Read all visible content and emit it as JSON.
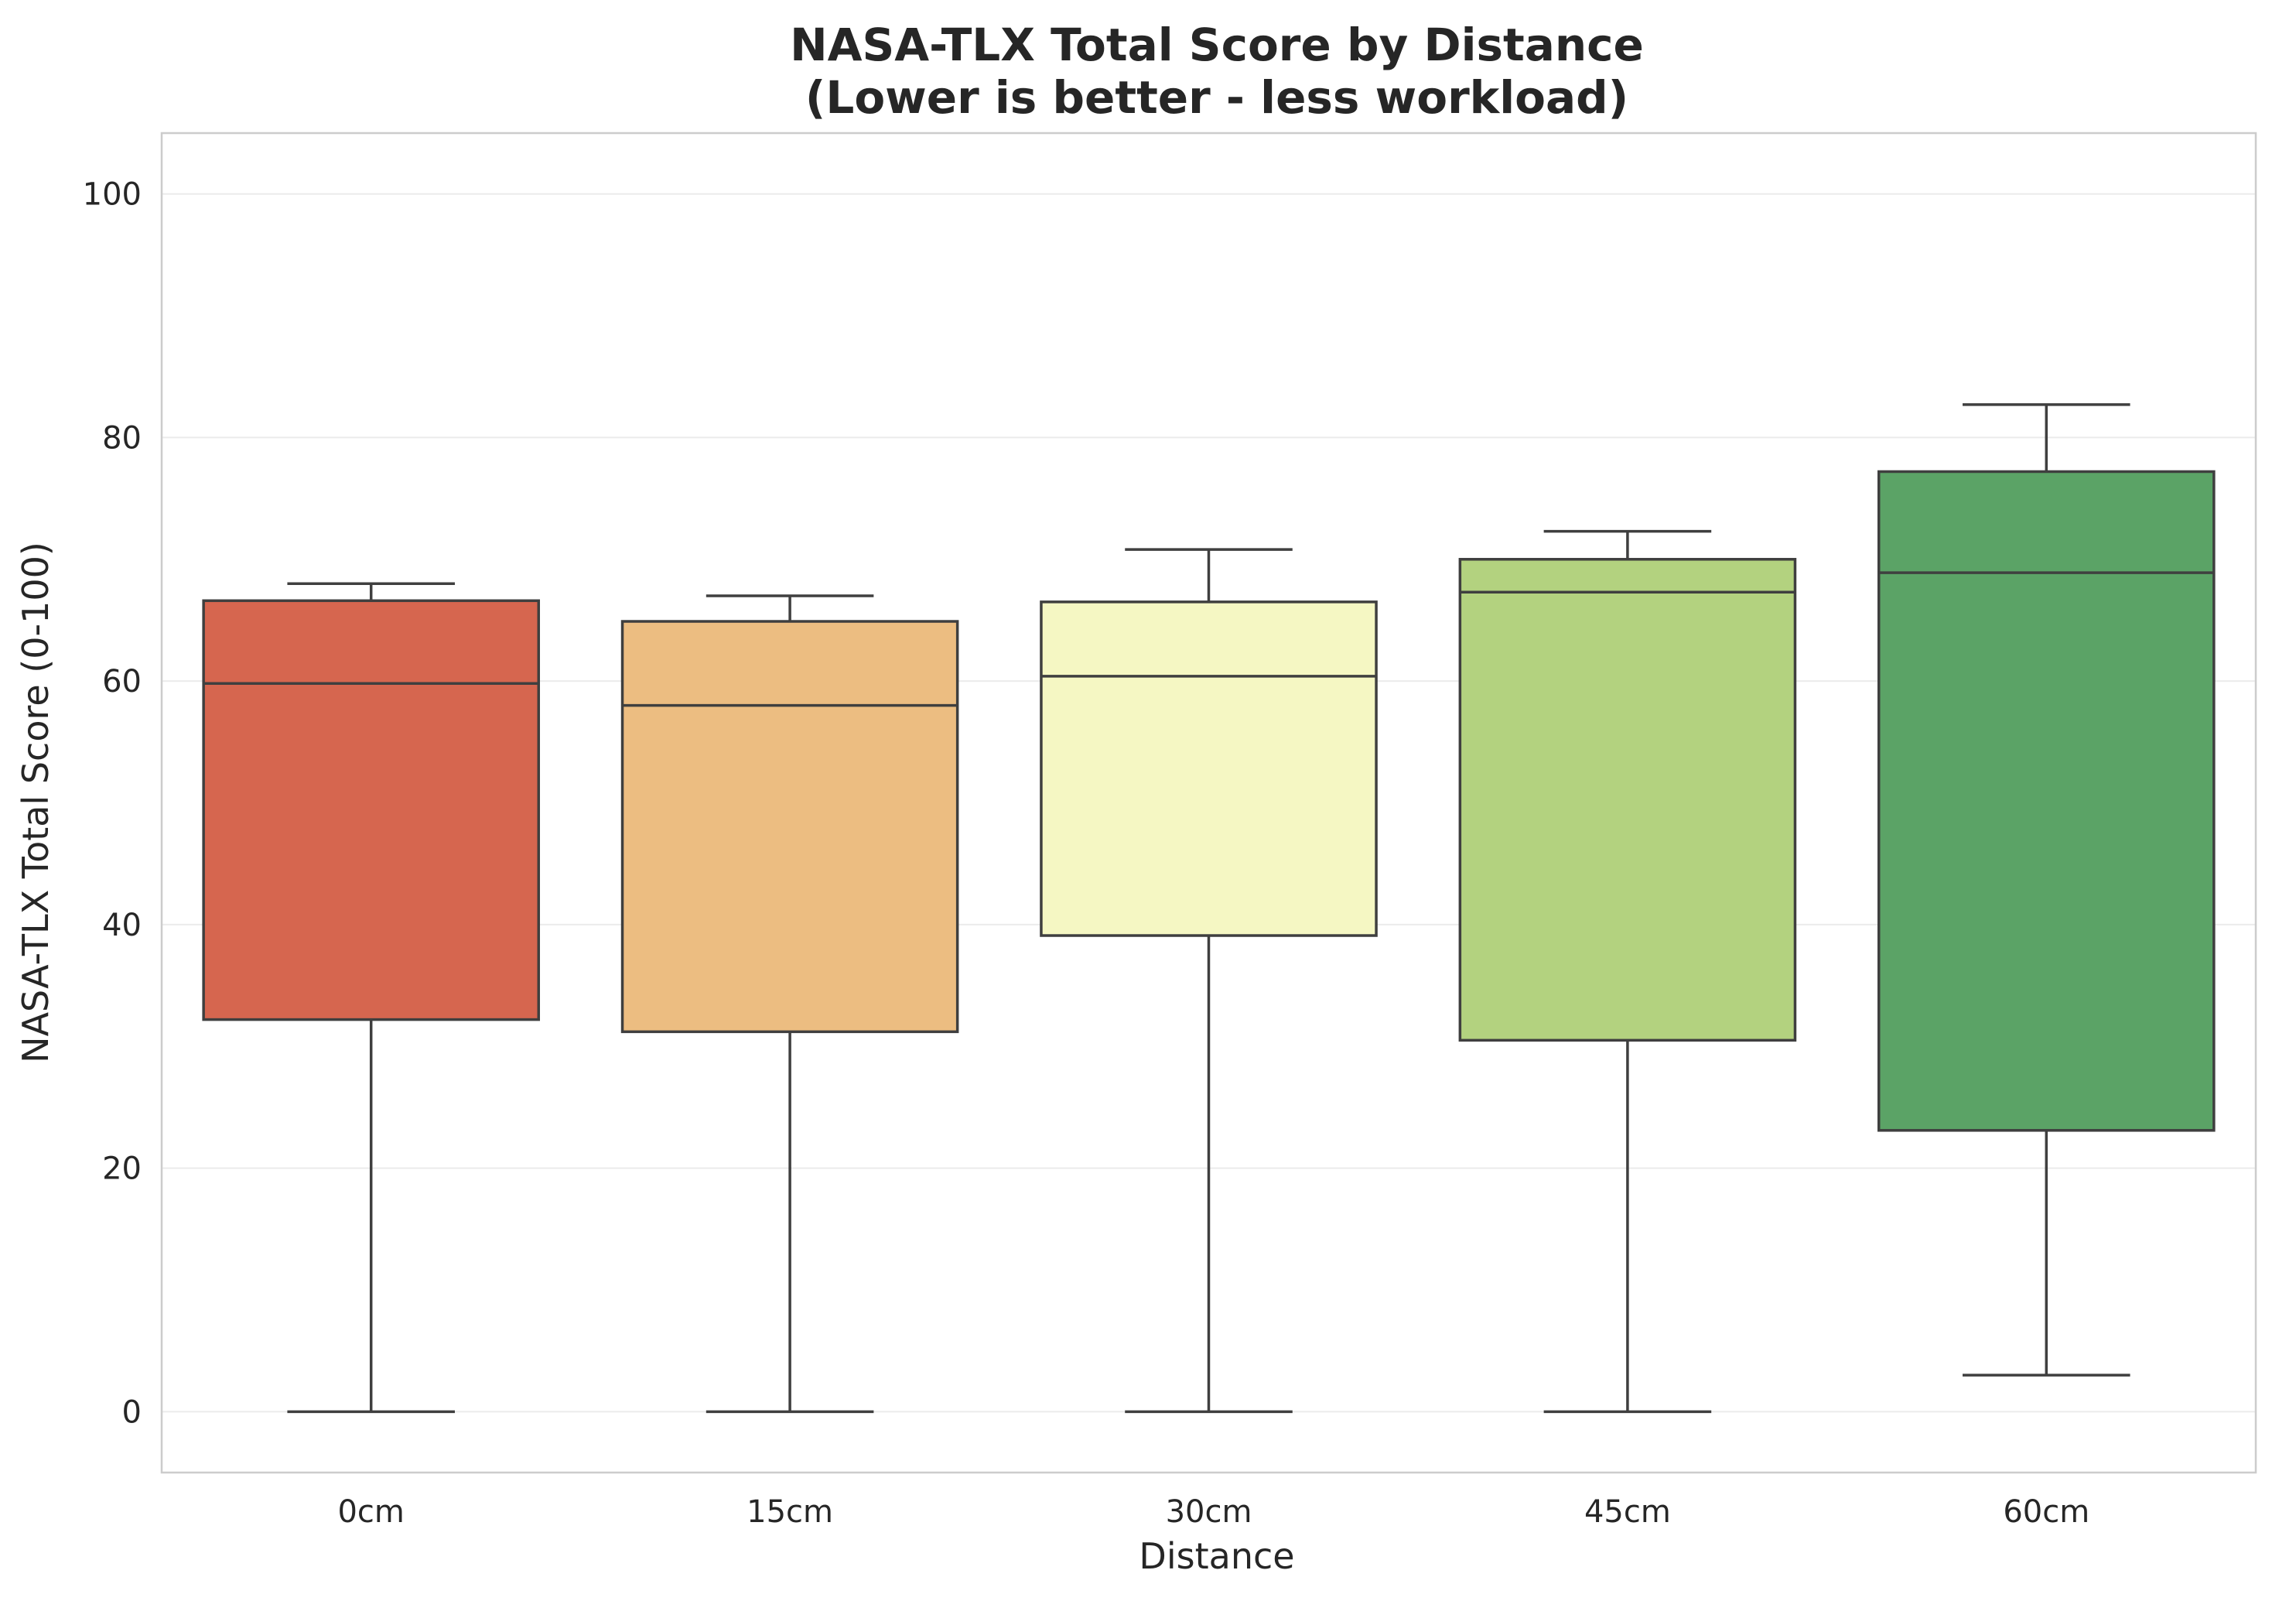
{
  "chart_data": {
    "type": "box",
    "title": [
      "NASA-TLX Total Score by Distance",
      "(Lower is better - less workload)"
    ],
    "xlabel": "Distance",
    "ylabel": "NASA-TLX Total Score (0-100)",
    "ylim": [
      -5,
      105
    ],
    "yticks": [
      0,
      20,
      40,
      60,
      80,
      100
    ],
    "grid": true,
    "categories": [
      "0cm",
      "15cm",
      "30cm",
      "45cm",
      "60cm"
    ],
    "boxes": [
      {
        "label": "0cm",
        "min": 0,
        "q1": 32.2,
        "median": 59.8,
        "q3": 66.6,
        "max": 68.0,
        "color": "#d6664f"
      },
      {
        "label": "15cm",
        "min": 0,
        "q1": 31.2,
        "median": 58.0,
        "q3": 64.9,
        "max": 67.0,
        "color": "#ecbd81"
      },
      {
        "label": "30cm",
        "min": 0,
        "q1": 39.1,
        "median": 60.4,
        "q3": 66.5,
        "max": 70.8,
        "color": "#f5f7c3"
      },
      {
        "label": "45cm",
        "min": 0,
        "q1": 30.5,
        "median": 67.3,
        "q3": 70.0,
        "max": 72.3,
        "color": "#b3d27f"
      },
      {
        "label": "60cm",
        "min": 3.0,
        "q1": 23.1,
        "median": 68.9,
        "q3": 77.2,
        "max": 82.7,
        "color": "#5ba366"
      }
    ]
  }
}
